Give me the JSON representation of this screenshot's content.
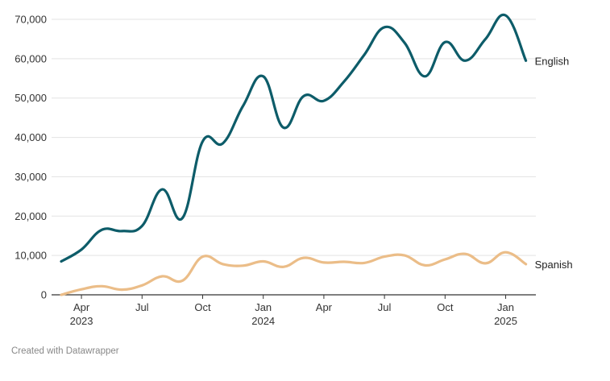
{
  "credit": "Created with Datawrapper",
  "chart_data": {
    "type": "line",
    "title": "",
    "xlabel": "",
    "ylabel": "",
    "ylim": [
      0,
      70000
    ],
    "y_ticks": [
      0,
      10000,
      20000,
      30000,
      40000,
      50000,
      60000,
      70000
    ],
    "y_tick_labels": [
      "0",
      "10,000",
      "20,000",
      "30,000",
      "40,000",
      "50,000",
      "60,000",
      "70,000"
    ],
    "grid": true,
    "x_ticks": [
      {
        "x": "2023-04",
        "label": "Apr",
        "sublabel": "2023"
      },
      {
        "x": "2023-07",
        "label": "Jul",
        "sublabel": ""
      },
      {
        "x": "2023-10",
        "label": "Oct",
        "sublabel": ""
      },
      {
        "x": "2024-01",
        "label": "Jan",
        "sublabel": "2024"
      },
      {
        "x": "2024-04",
        "label": "Apr",
        "sublabel": ""
      },
      {
        "x": "2024-07",
        "label": "Jul",
        "sublabel": ""
      },
      {
        "x": "2024-10",
        "label": "Oct",
        "sublabel": ""
      },
      {
        "x": "2025-01",
        "label": "Jan",
        "sublabel": "2025"
      }
    ],
    "x": [
      "2023-03",
      "2023-04",
      "2023-05",
      "2023-06",
      "2023-07",
      "2023-08",
      "2023-09",
      "2023-10",
      "2023-11",
      "2023-12",
      "2024-01",
      "2024-02",
      "2024-03",
      "2024-04",
      "2024-05",
      "2024-06",
      "2024-07",
      "2024-08",
      "2024-09",
      "2024-10",
      "2024-11",
      "2024-12",
      "2025-01",
      "2025-02"
    ],
    "series": [
      {
        "name": "English",
        "color": "#0d5c69",
        "values": [
          8500,
          11500,
          16500,
          16200,
          17500,
          26800,
          19500,
          39000,
          38500,
          48000,
          55500,
          42500,
          50500,
          49300,
          54200,
          61000,
          68000,
          64000,
          55500,
          64200,
          59500,
          65000,
          71000,
          59500
        ]
      },
      {
        "name": "Spanish",
        "color": "#ebbd88",
        "values": [
          0,
          1400,
          2200,
          1300,
          2400,
          4700,
          3600,
          9700,
          7800,
          7400,
          8500,
          7100,
          9400,
          8200,
          8400,
          8100,
          9700,
          10000,
          7500,
          9000,
          10400,
          8000,
          10800,
          7800
        ]
      }
    ]
  }
}
